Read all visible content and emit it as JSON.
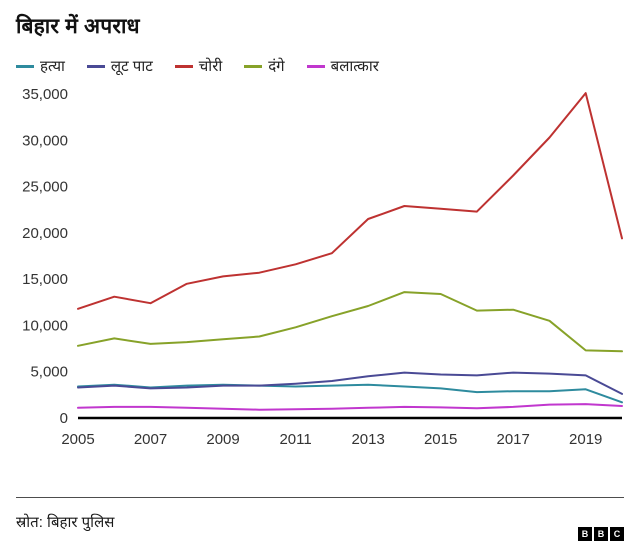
{
  "header": {
    "title": "बिहार में अपराध"
  },
  "footer": {
    "source": "स्रोत: बिहार पुलिस",
    "logo": [
      "B",
      "B",
      "C"
    ]
  },
  "chart_data": {
    "type": "line",
    "title": "बिहार में अपराध",
    "xlabel": "",
    "ylabel": "",
    "xlim": [
      2005,
      2020
    ],
    "ylim": [
      0,
      35000
    ],
    "grid": false,
    "legend_position": "top",
    "x": [
      2005,
      2006,
      2007,
      2008,
      2009,
      2010,
      2011,
      2012,
      2013,
      2014,
      2015,
      2016,
      2017,
      2018,
      2019,
      2020
    ],
    "x_ticks": [
      2005,
      2007,
      2009,
      2011,
      2013,
      2015,
      2017,
      2019
    ],
    "x_tick_labels": [
      "2005",
      "2007",
      "2009",
      "2011",
      "2013",
      "2015",
      "2017",
      "2019"
    ],
    "y_ticks": [
      0,
      5000,
      10000,
      15000,
      20000,
      25000,
      30000,
      35000
    ],
    "y_tick_labels": [
      "0",
      "5,000",
      "10,000",
      "15,000",
      "20,000",
      "25,000",
      "30,000",
      "35,000"
    ],
    "series": [
      {
        "name": "हत्या",
        "color": "#2e8b9e",
        "values": [
          3400,
          3600,
          3300,
          3500,
          3600,
          3500,
          3400,
          3500,
          3600,
          3400,
          3200,
          2800,
          2900,
          2900,
          3100,
          1700
        ]
      },
      {
        "name": "लूट पाट",
        "color": "#4a4a95",
        "values": [
          3300,
          3500,
          3200,
          3300,
          3500,
          3500,
          3700,
          4000,
          4500,
          4900,
          4700,
          4600,
          4900,
          4800,
          4600,
          2600
        ]
      },
      {
        "name": "चोरी",
        "color": "#be3231",
        "values": [
          11800,
          13100,
          12400,
          14500,
          15300,
          15700,
          16600,
          17800,
          21500,
          22900,
          22600,
          22300,
          26200,
          30300,
          35100,
          19400
        ]
      },
      {
        "name": "दंगे",
        "color": "#87a229",
        "values": [
          7800,
          8600,
          8000,
          8200,
          8500,
          8800,
          9800,
          11000,
          12100,
          13600,
          13400,
          11600,
          11700,
          10500,
          7300,
          7200
        ]
      },
      {
        "name": "बलात्कार",
        "color": "#c137ce",
        "values": [
          1100,
          1200,
          1200,
          1100,
          1000,
          900,
          950,
          1000,
          1100,
          1200,
          1150,
          1050,
          1200,
          1450,
          1500,
          1300
        ]
      }
    ]
  }
}
